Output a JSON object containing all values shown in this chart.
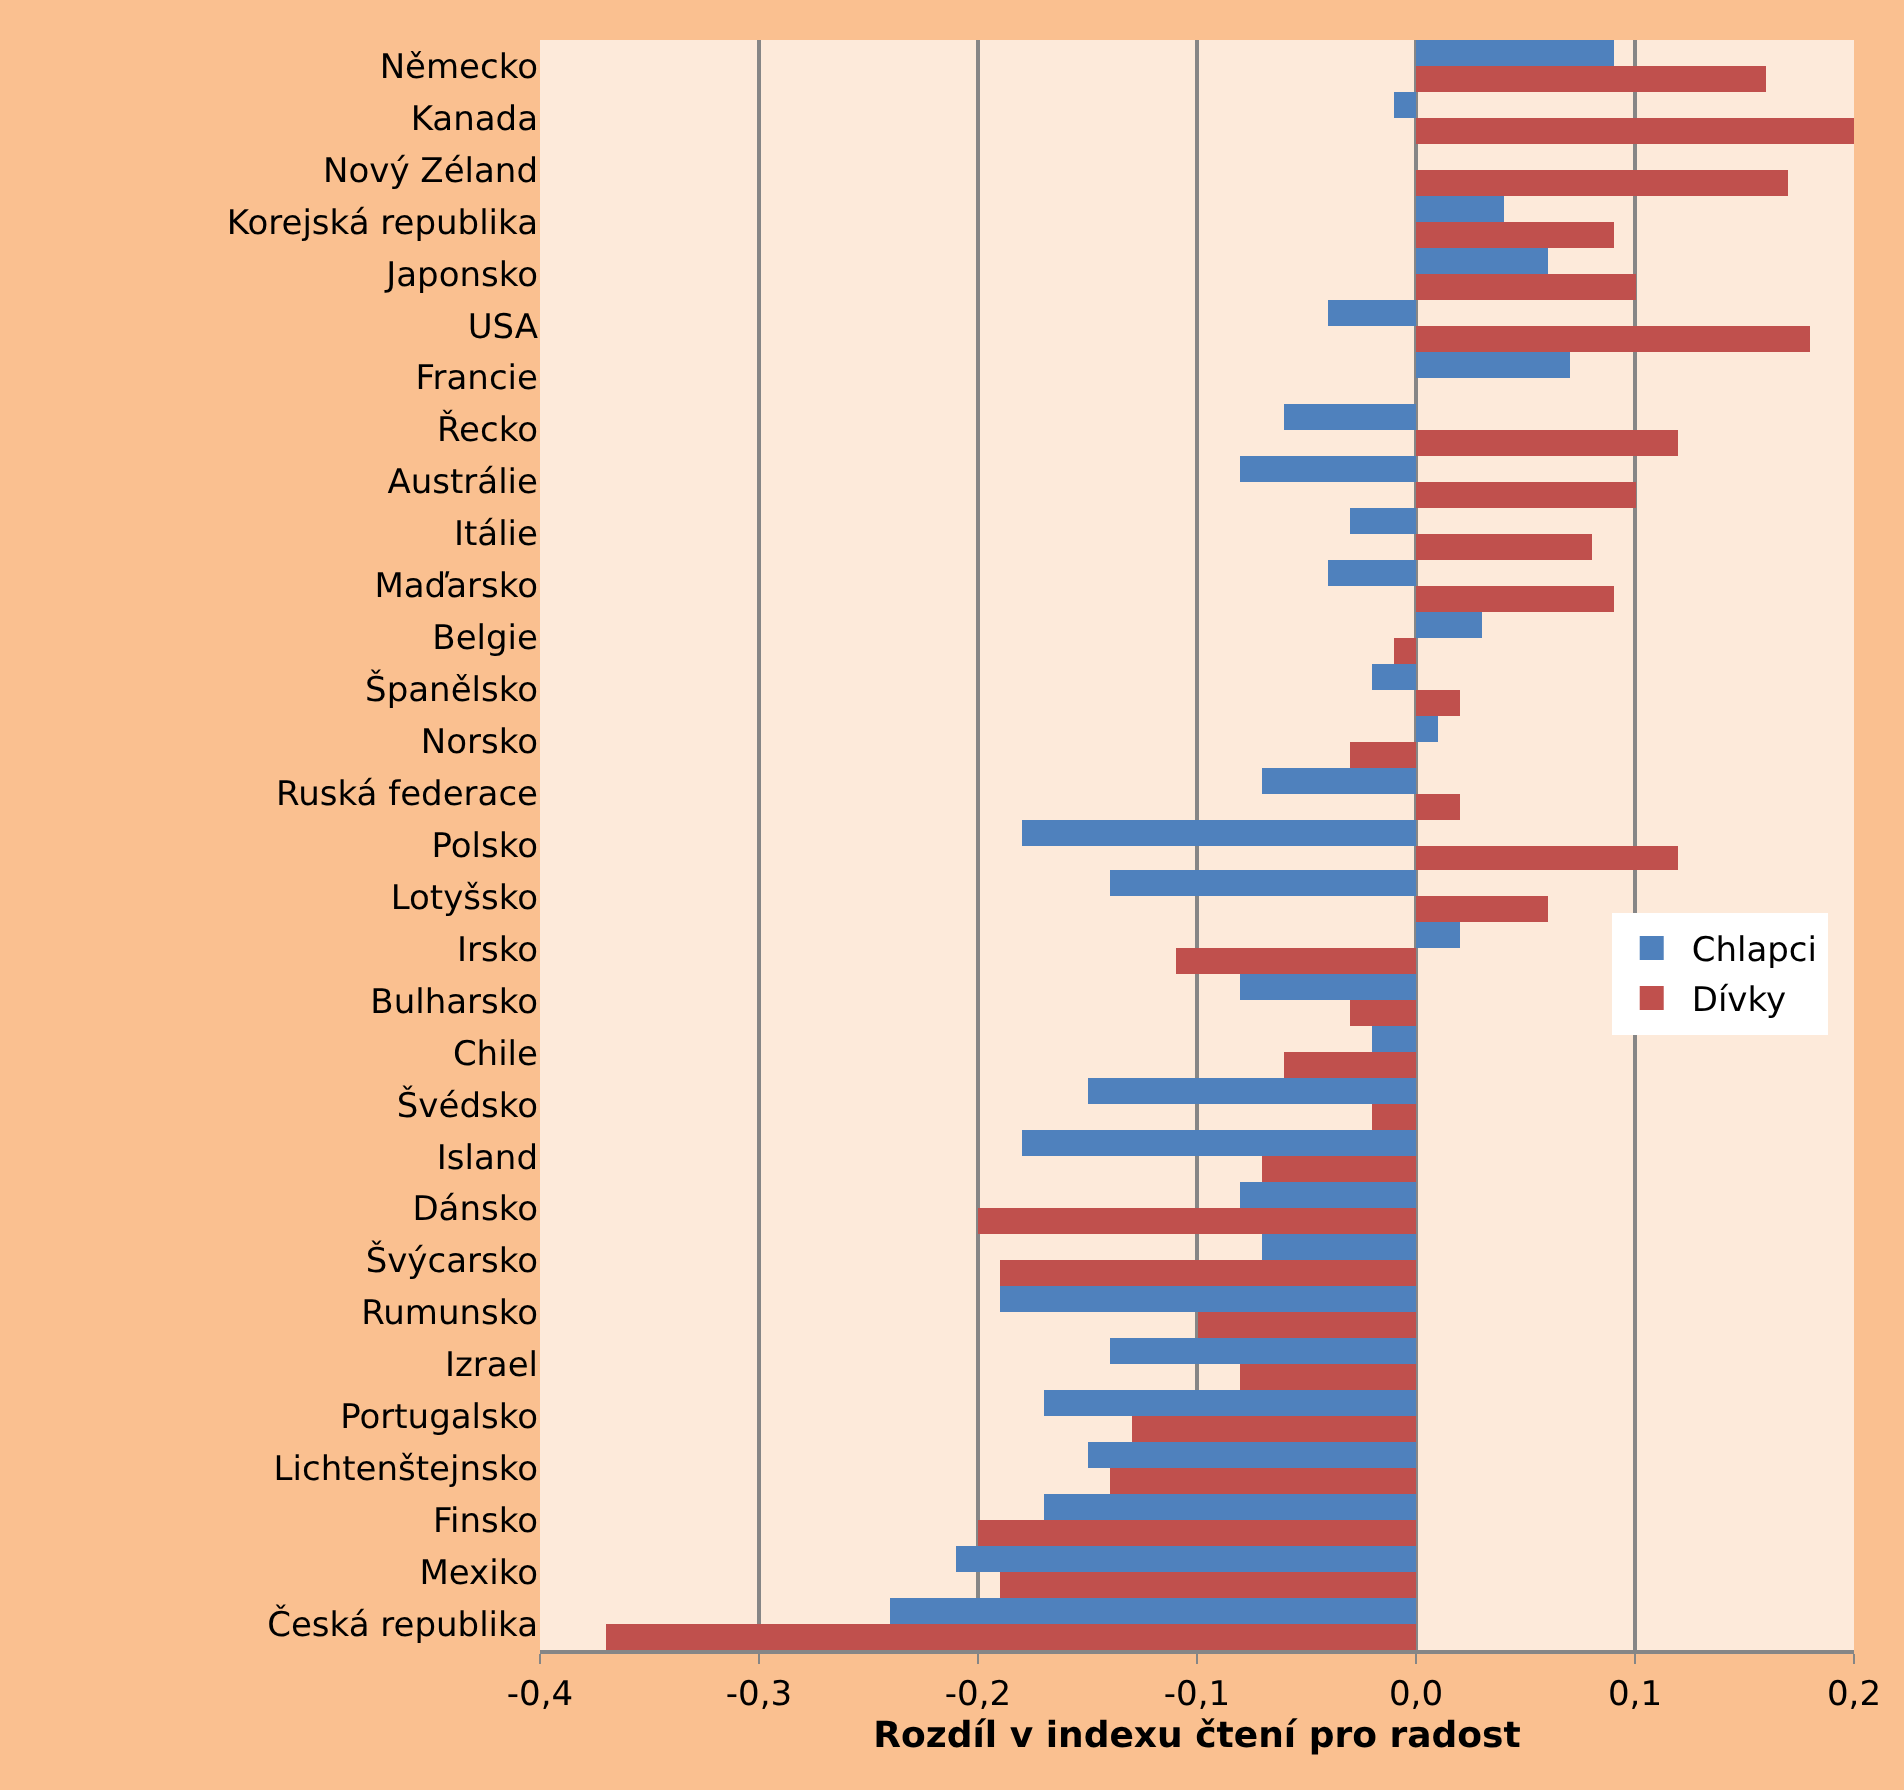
{
  "chart_data": {
    "type": "bar",
    "orientation": "horizontal",
    "xlabel": "Rozdíl v indexu čtení pro radost",
    "categories": [
      "Německo",
      "Kanada",
      "Nový Zéland",
      "Korejská republika",
      "Japonsko",
      "USA",
      "Francie",
      "Řecko",
      "Austrálie",
      "Itálie",
      "Maďarsko",
      "Belgie",
      "Španělsko",
      "Norsko",
      "Ruská federace",
      "Polsko",
      "Lotyšsko",
      "Irsko",
      "Bulharsko",
      "Chile",
      "Švédsko",
      "Island",
      "Dánsko",
      "Švýcarsko",
      "Rumunsko",
      "Izrael",
      "Portugalsko",
      "Lichtenštejnsko",
      "Finsko",
      "Mexiko",
      "Česká republika"
    ],
    "series": [
      {
        "name": "Chlapci",
        "color": "#4f81bd",
        "values": [
          0.09,
          -0.01,
          0,
          0.04,
          0.06,
          -0.04,
          0.07,
          -0.06,
          -0.08,
          -0.03,
          -0.04,
          0.03,
          -0.02,
          0.01,
          -0.07,
          -0.18,
          -0.14,
          0.02,
          -0.08,
          -0.02,
          -0.15,
          -0.18,
          -0.08,
          -0.07,
          -0.19,
          -0.14,
          -0.17,
          -0.15,
          -0.17,
          -0.21,
          -0.24
        ]
      },
      {
        "name": "Dívky",
        "color": "#c0504d",
        "values": [
          0.16,
          0.2,
          0.17,
          0.09,
          0.1,
          0.18,
          0,
          0.12,
          0.1,
          0.08,
          0.09,
          -0.01,
          0.02,
          -0.03,
          0.02,
          0.12,
          0.06,
          -0.11,
          -0.03,
          -0.06,
          -0.02,
          -0.07,
          -0.2,
          -0.19,
          -0.1,
          -0.08,
          -0.13,
          -0.14,
          -0.2,
          -0.19,
          -0.37
        ]
      }
    ],
    "xlim": [
      -0.4,
      0.2
    ],
    "xticks": [
      {
        "value": -0.4,
        "label": "-0,4"
      },
      {
        "value": -0.3,
        "label": "-0,3"
      },
      {
        "value": -0.2,
        "label": "-0,2"
      },
      {
        "value": -0.1,
        "label": "-0,1"
      },
      {
        "value": 0,
        "label": "0,0"
      },
      {
        "value": 0.1,
        "label": "0,1"
      },
      {
        "value": 0.2,
        "label": "0,2"
      }
    ],
    "grid": "x",
    "legend": "right"
  }
}
